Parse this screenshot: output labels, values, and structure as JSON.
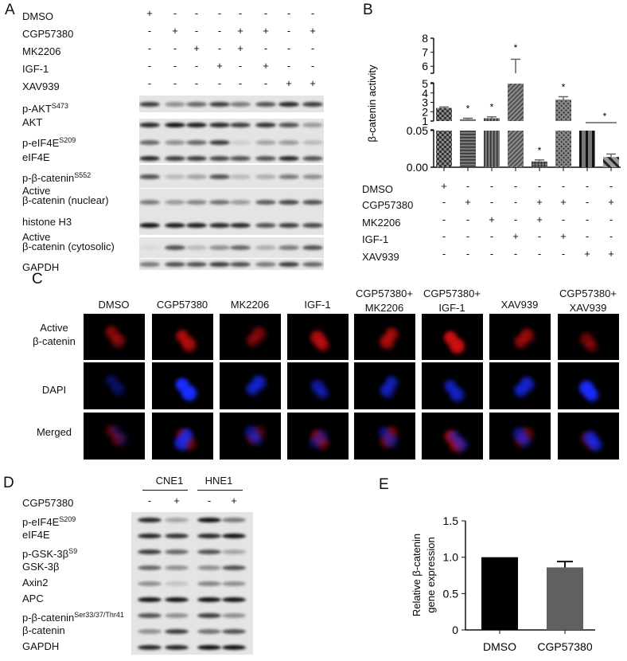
{
  "panel_labels": {
    "a": "A",
    "b": "B",
    "c": "C",
    "d": "D",
    "e": "E"
  },
  "treatments": [
    "DMSO",
    "CGP57380",
    "MK2206",
    "IGF-1",
    "XAV939"
  ],
  "treatment_matrix": [
    [
      "+",
      "-",
      "-",
      "-",
      "-",
      "-",
      "-",
      "-"
    ],
    [
      "-",
      "+",
      "-",
      "-",
      "+",
      "+",
      "-",
      "+"
    ],
    [
      "-",
      "-",
      "+",
      "-",
      "+",
      "-",
      "-",
      "-"
    ],
    [
      "-",
      "-",
      "-",
      "+",
      "-",
      "+",
      "-",
      "-"
    ],
    [
      "-",
      "-",
      "-",
      "-",
      "-",
      "-",
      "+",
      "+"
    ]
  ],
  "panel_a": {
    "blot_labels": [
      {
        "main": "p-AKT",
        "sup": "S473"
      },
      {
        "main": "AKT",
        "sup": ""
      },
      {
        "main": "p-eIF4E",
        "sup": "S209"
      },
      {
        "main": "eIF4E",
        "sup": ""
      },
      {
        "main": "p-β-catenin",
        "sup": "S552"
      },
      {
        "main": "Active",
        "line2": "β-catenin (nuclear)"
      },
      {
        "main": "histone H3",
        "sup": ""
      },
      {
        "main": "Active",
        "line2": "β-catenin (cytosolic)"
      },
      {
        "main": "GAPDH",
        "sup": ""
      }
    ]
  },
  "panel_c": {
    "columns": [
      [
        "DMSO",
        ""
      ],
      [
        "CGP57380",
        ""
      ],
      [
        "MK2206",
        ""
      ],
      [
        "IGF-1",
        ""
      ],
      [
        "CGP57380+",
        "MK2206"
      ],
      [
        "CGP57380+",
        "IGF-1"
      ],
      [
        "XAV939",
        ""
      ],
      [
        "CGP57380+",
        "XAV939"
      ]
    ],
    "rows": [
      [
        "Active",
        "β-catenin"
      ],
      [
        "DAPI",
        ""
      ],
      [
        "Merged",
        ""
      ]
    ],
    "colors": {
      "active": "#d01010",
      "dapi": "#1a2cff"
    }
  },
  "panel_d": {
    "cell_lines": [
      "CNE1",
      "HNE1"
    ],
    "treatment": "CGP57380",
    "treatment_signs": [
      "-",
      "+",
      "-",
      "+"
    ],
    "blot_labels": [
      {
        "main": "p-eIF4E",
        "sup": "S209"
      },
      {
        "main": "eIF4E",
        "sup": ""
      },
      {
        "main": "p-GSK-3β",
        "sup": "S9"
      },
      {
        "main": "GSK-3β",
        "sup": ""
      },
      {
        "main": "Axin2",
        "sup": ""
      },
      {
        "main": "APC",
        "sup": ""
      },
      {
        "main": "p-β-catenin",
        "sup": "Ser33/37/Thr41"
      },
      {
        "main": "β-catenin",
        "sup": ""
      },
      {
        "main": "GAPDH",
        "sup": ""
      }
    ]
  },
  "chart_data": [
    {
      "type": "bar",
      "panel": "B",
      "ylabel": "β-catenin activity",
      "broken_axis": true,
      "y_segments": [
        [
          0,
          0.05
        ],
        [
          1,
          5
        ],
        [
          5.5,
          8
        ]
      ],
      "yticks": [
        "0.00",
        "0.05",
        "1",
        "2",
        "3",
        "4",
        "5",
        "6",
        "7",
        "8"
      ],
      "categories": [
        "DMSO",
        "CGP57380",
        "MK2206",
        "IGF-1",
        "CGP57380+MK2206",
        "CGP57380+IGF-1",
        "XAV939",
        "CGP57380+XAV939"
      ],
      "values": [
        2.4,
        1.2,
        1.3,
        5.0,
        0.008,
        3.3,
        1.0,
        0.014
      ],
      "errors": [
        0.1,
        0.1,
        0.15,
        1.5,
        0.002,
        0.3,
        0,
        0.004
      ],
      "significant": [
        false,
        true,
        true,
        true,
        true,
        true,
        false,
        true
      ],
      "star": "*"
    },
    {
      "type": "bar",
      "panel": "E",
      "ylabel_line1": "Relative β-catenin",
      "ylabel_line2": "gene expression",
      "categories": [
        "DMSO",
        "CGP57380"
      ],
      "values": [
        1.0,
        0.86
      ],
      "errors": [
        0,
        0.08
      ],
      "ylim": [
        0,
        1.5
      ],
      "yticks": [
        "0",
        "0.5",
        "1.0",
        "1.5"
      ],
      "colors": [
        "#000000",
        "#606060"
      ]
    }
  ]
}
